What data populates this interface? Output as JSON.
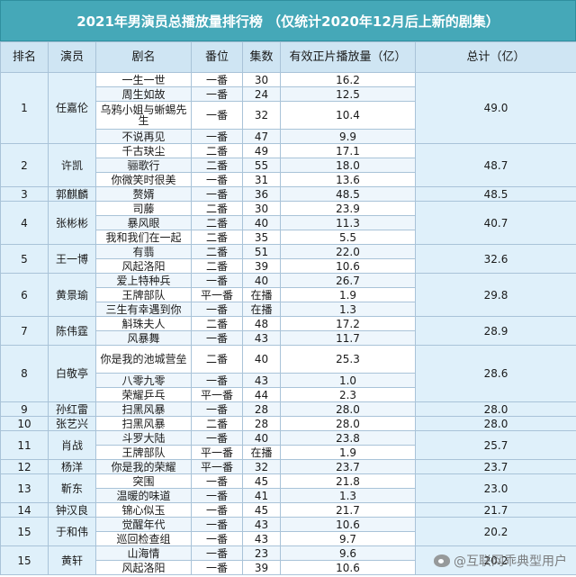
{
  "title": "2021年男演员总播放量排行榜 （仅统计2020年12月后上新的剧集）",
  "headers": [
    "排名",
    "演员",
    "剧名",
    "番位",
    "集数",
    "有效正片播放量（亿）",
    "总计（亿）"
  ],
  "groups": [
    {
      "rank": "1",
      "actor": "任嘉伦",
      "total": "49.0",
      "dramas": [
        {
          "name": "一生一世",
          "pos": "一番",
          "eps": "30",
          "plays": "16.2"
        },
        {
          "name": "周生如故",
          "pos": "一番",
          "eps": "24",
          "plays": "12.5"
        },
        {
          "name": "乌鸦小姐与蜥蜴先生",
          "pos": "一番",
          "eps": "32",
          "plays": "10.4"
        },
        {
          "name": "不说再见",
          "pos": "一番",
          "eps": "47",
          "plays": "9.9"
        }
      ]
    },
    {
      "rank": "2",
      "actor": "许凯",
      "total": "48.7",
      "dramas": [
        {
          "name": "千古玦尘",
          "pos": "二番",
          "eps": "49",
          "plays": "17.1"
        },
        {
          "name": "骊歌行",
          "pos": "二番",
          "eps": "55",
          "plays": "18.0"
        },
        {
          "name": "你微笑时很美",
          "pos": "一番",
          "eps": "31",
          "plays": "13.6"
        }
      ]
    },
    {
      "rank": "3",
      "actor": "郭麒麟",
      "total": "48.5",
      "dramas": [
        {
          "name": "赘婿",
          "pos": "一番",
          "eps": "36",
          "plays": "48.5"
        }
      ]
    },
    {
      "rank": "4",
      "actor": "张彬彬",
      "total": "40.7",
      "dramas": [
        {
          "name": "司藤",
          "pos": "二番",
          "eps": "30",
          "plays": "23.9"
        },
        {
          "name": "暴风眼",
          "pos": "二番",
          "eps": "40",
          "plays": "11.3"
        },
        {
          "name": "我和我们在一起",
          "pos": "二番",
          "eps": "35",
          "plays": "5.5"
        }
      ]
    },
    {
      "rank": "5",
      "actor": "王一博",
      "total": "32.6",
      "dramas": [
        {
          "name": "有翡",
          "pos": "二番",
          "eps": "51",
          "plays": "22.0"
        },
        {
          "name": "风起洛阳",
          "pos": "二番",
          "eps": "39",
          "plays": "10.6"
        }
      ]
    },
    {
      "rank": "6",
      "actor": "黄景瑜",
      "total": "29.8",
      "dramas": [
        {
          "name": "爱上特种兵",
          "pos": "一番",
          "eps": "40",
          "plays": "26.7"
        },
        {
          "name": "王牌部队",
          "pos": "平一番",
          "eps": "在播",
          "plays": "1.9"
        },
        {
          "name": "三生有幸遇到你",
          "pos": "一番",
          "eps": "在播",
          "plays": "1.3"
        }
      ]
    },
    {
      "rank": "7",
      "actor": "陈伟霆",
      "total": "28.9",
      "dramas": [
        {
          "name": "斛珠夫人",
          "pos": "二番",
          "eps": "48",
          "plays": "17.2"
        },
        {
          "name": "风暴舞",
          "pos": "一番",
          "eps": "43",
          "plays": "11.7"
        }
      ]
    },
    {
      "rank": "8",
      "actor": "白敬亭",
      "total": "28.6",
      "dramas": [
        {
          "name": "你是我的池城营垒",
          "pos": "二番",
          "eps": "40",
          "plays": "25.3"
        },
        {
          "name": "八零九零",
          "pos": "一番",
          "eps": "43",
          "plays": "1.0"
        },
        {
          "name": "荣耀乒乓",
          "pos": "平一番",
          "eps": "44",
          "plays": "2.3"
        }
      ]
    },
    {
      "rank": "9",
      "actor": "孙红雷",
      "total": "28.0",
      "dramas": [
        {
          "name": "扫黑风暴",
          "pos": "一番",
          "eps": "28",
          "plays": "28.0"
        }
      ]
    },
    {
      "rank": "10",
      "actor": "张艺兴",
      "total": "28.0",
      "dramas": [
        {
          "name": "扫黑风暴",
          "pos": "二番",
          "eps": "28",
          "plays": "28.0"
        }
      ]
    },
    {
      "rank": "11",
      "actor": "肖战",
      "total": "25.7",
      "dramas": [
        {
          "name": "斗罗大陆",
          "pos": "一番",
          "eps": "40",
          "plays": "23.8"
        },
        {
          "name": "王牌部队",
          "pos": "平一番",
          "eps": "在播",
          "plays": "1.9"
        }
      ]
    },
    {
      "rank": "12",
      "actor": "杨洋",
      "total": "23.7",
      "dramas": [
        {
          "name": "你是我的荣耀",
          "pos": "平一番",
          "eps": "32",
          "plays": "23.7"
        }
      ]
    },
    {
      "rank": "13",
      "actor": "靳东",
      "total": "23.0",
      "dramas": [
        {
          "name": "突围",
          "pos": "一番",
          "eps": "45",
          "plays": "21.8"
        },
        {
          "name": "温暖的味道",
          "pos": "一番",
          "eps": "41",
          "plays": "1.3"
        }
      ]
    },
    {
      "rank": "14",
      "actor": "钟汉良",
      "total": "21.7",
      "dramas": [
        {
          "name": "锦心似玉",
          "pos": "一番",
          "eps": "45",
          "plays": "21.7"
        }
      ]
    },
    {
      "rank": "15",
      "actor": "于和伟",
      "total": "20.2",
      "dramas": [
        {
          "name": "觉醒年代",
          "pos": "一番",
          "eps": "43",
          "plays": "10.6"
        },
        {
          "name": "巡回检查组",
          "pos": "一番",
          "eps": "43",
          "plays": "9.7"
        }
      ]
    },
    {
      "rank": "15",
      "actor": "黄轩",
      "total": "20.2",
      "dramas": [
        {
          "name": "山海情",
          "pos": "一番",
          "eps": "23",
          "plays": "9.6"
        },
        {
          "name": "风起洛阳",
          "pos": "一番",
          "eps": "39",
          "plays": "10.6"
        }
      ]
    }
  ],
  "watermark": "@互联网乖典型用户",
  "colors": {
    "title_bg": "#45a8b8",
    "header_bg": "#cfe5f3",
    "merged_bg": "#dff0fa",
    "border": "#a9c3d8"
  }
}
